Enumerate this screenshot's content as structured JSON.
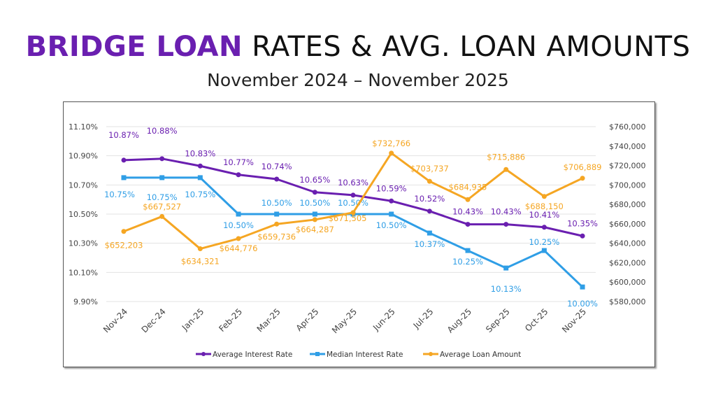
{
  "header": {
    "title_highlight": "BRIDGE LOAN",
    "title_rest": " RATES & AVG. LOAN AMOUNTS",
    "subtitle": "November 2024 – November 2025"
  },
  "chart_data": {
    "type": "line",
    "categories": [
      "Nov-24",
      "Dec-24",
      "Jan-25",
      "Feb-25",
      "Mar-25",
      "Apr-25",
      "May-25",
      "Jun-25",
      "Jul-25",
      "Aug-25",
      "Sep-25",
      "Oct-25",
      "Nov-25"
    ],
    "y_left": {
      "range": [
        9.9,
        11.1
      ],
      "ticks": [
        "11.10%",
        "10.90%",
        "10.70%",
        "10.50%",
        "10.30%",
        "10.10%",
        "9.90%"
      ]
    },
    "y_right": {
      "range": [
        580000,
        760000
      ],
      "ticks": [
        "$760,000",
        "$740,000",
        "$720,000",
        "$700,000",
        "$680,000",
        "$660,000",
        "$640,000",
        "$620,000",
        "$600,000",
        "$580,000"
      ]
    },
    "grid": true,
    "legend_position": "bottom",
    "series": [
      {
        "name": "Average Interest Rate",
        "axis": "left",
        "color": "#6a1fb0",
        "marker": "circle",
        "values": [
          10.87,
          10.88,
          10.83,
          10.77,
          10.74,
          10.65,
          10.63,
          10.59,
          10.52,
          10.43,
          10.43,
          10.41,
          10.35
        ],
        "labels": [
          "10.87%",
          "10.88%",
          "10.83%",
          "10.77%",
          "10.74%",
          "10.65%",
          "10.63%",
          "10.59%",
          "10.52%",
          "10.43%",
          "10.43%",
          "10.41%",
          "10.35%"
        ]
      },
      {
        "name": "Median Interest Rate",
        "axis": "left",
        "color": "#2f9ee6",
        "marker": "square",
        "values": [
          10.75,
          10.75,
          10.75,
          10.5,
          10.5,
          10.5,
          10.5,
          10.5,
          10.37,
          10.25,
          10.13,
          10.25,
          10.0
        ],
        "labels": [
          "10.75%",
          "10.75%",
          "10.75%",
          "10.50%",
          "10.50%",
          "10.50%",
          "10.50%",
          "10.50%",
          "10.37%",
          "10.25%",
          "10.13%",
          "10.25%",
          "10.00%"
        ]
      },
      {
        "name": "Average Loan Amount",
        "axis": "right",
        "color": "#f5a623",
        "marker": "circle",
        "values": [
          652203,
          667527,
          634321,
          644776,
          659736,
          664287,
          671505,
          732766,
          703737,
          684935,
          715886,
          688150,
          706889
        ],
        "labels": [
          "$652,203",
          "$667,527",
          "$634,321",
          "$644,776",
          "$659,736",
          "$664,287",
          "$671,505",
          "$732,766",
          "$703,737",
          "$684,935",
          "$715,886",
          "$688,150",
          "$706,889"
        ]
      }
    ]
  }
}
